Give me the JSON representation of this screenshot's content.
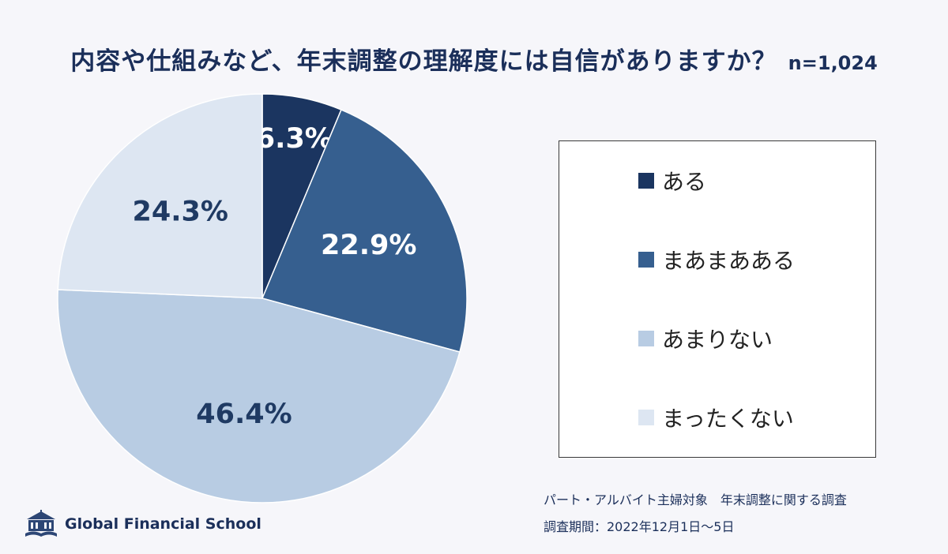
{
  "title": "内容や仕組みなど、年末調整の理解度には自信がありますか？",
  "sample_size": "n=1,024",
  "chart_data": {
    "type": "pie",
    "title": "内容や仕組みなど、年末調整の理解度には自信がありますか？",
    "categories": [
      "ある",
      "まあまあある",
      "あまりない",
      "まったくない"
    ],
    "values": [
      6.3,
      22.9,
      46.4,
      24.3
    ],
    "labels": [
      "6.3%",
      "22.9%",
      "46.4%",
      "24.3%"
    ],
    "colors": [
      "#1b3560",
      "#365f8f",
      "#b8cce3",
      "#dde6f2"
    ],
    "label_colors": [
      "#ffffff",
      "#ffffff",
      "#1f3a63",
      "#1f3a63"
    ],
    "start": "12 o'clock, clockwise",
    "legend_position": "right"
  },
  "notes": {
    "survey": "パート・アルバイト主婦対象　年末調整に関する調査",
    "period": "調査期間：2022年12月1日～5日"
  },
  "logo": {
    "name": "Global Financial School",
    "icon": "school-building-icon"
  }
}
